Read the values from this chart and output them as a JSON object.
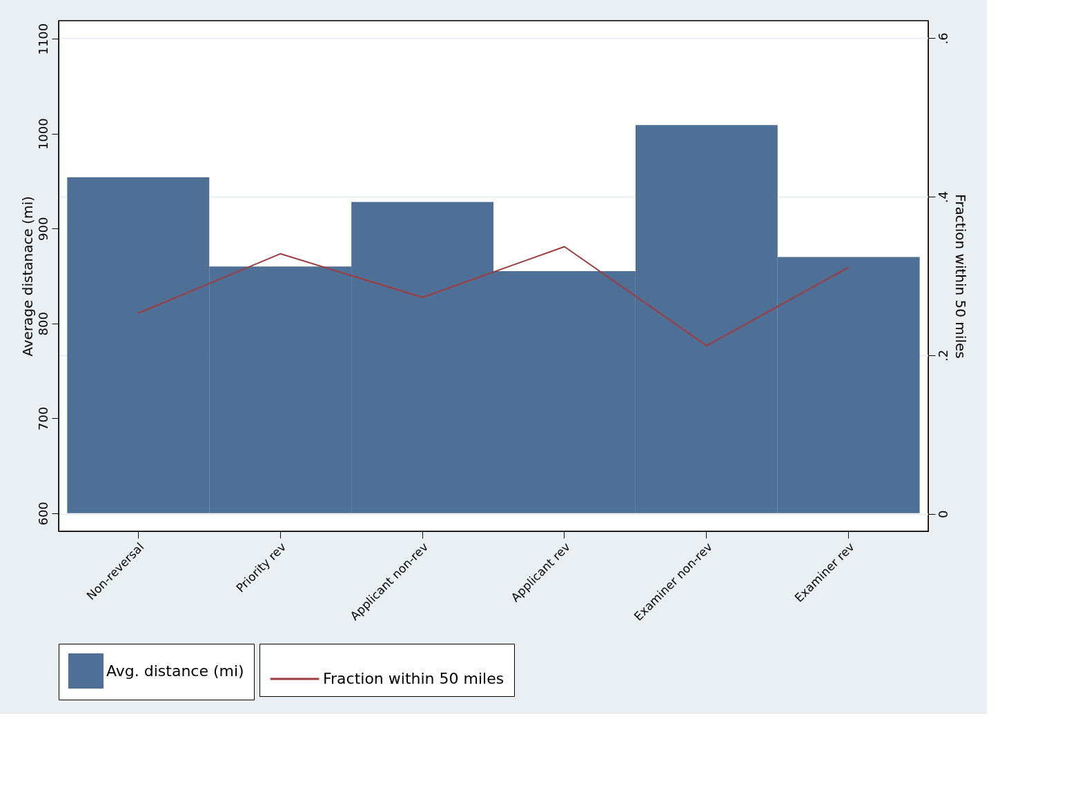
{
  "chart_data": {
    "type": "bar",
    "categories": [
      "Non-reversal",
      "Priority rev",
      "Applicant non-rev",
      "Applicant rev",
      "Examiner non-rev",
      "Examiner rev"
    ],
    "series": [
      {
        "name": "Avg. distance (mi)",
        "color": "#4e7096",
        "base": [
          600,
          600,
          600,
          600,
          600,
          600
        ],
        "values": [
          354,
          260,
          328,
          255,
          409,
          270
        ]
      },
      {
        "name": "Fraction within 50 miles",
        "type": "line",
        "axis": "y2",
        "color": "#a03a3c",
        "values": [
          0.253,
          0.328,
          0.273,
          0.337,
          0.212,
          0.311
        ]
      }
    ],
    "ylabel": "Average distanace (mi)",
    "y2label": "Fraction within 50 miles",
    "ylim": [
      581,
      1119
    ],
    "yticks": [
      600,
      700,
      800,
      900,
      1000,
      1100
    ],
    "y2lim": [
      -0.022,
      0.622
    ],
    "y2ticks": [
      0,
      {
        "value": 0.2,
        "label": ".2"
      },
      {
        "value": 0.4,
        "label": ".4"
      },
      {
        "value": 0.6,
        "label": ".6"
      }
    ],
    "grid": true,
    "legend": "bottom"
  }
}
